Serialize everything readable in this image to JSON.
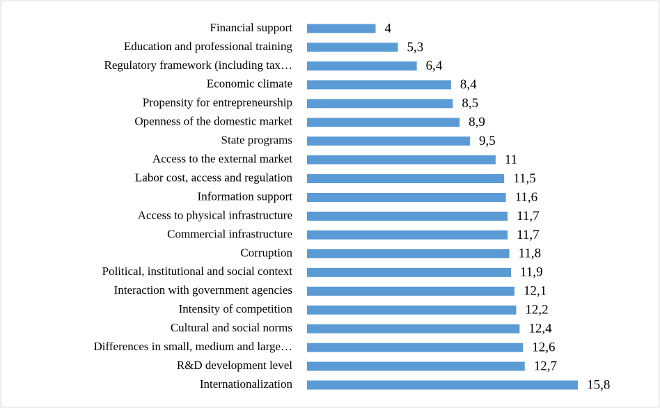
{
  "chart_data": {
    "type": "bar",
    "orientation": "horizontal",
    "categories": [
      "Financial support",
      "Education and professional training",
      "Regulatory framework (including tax…",
      "Economic climate",
      "Propensity for entrepreneurship",
      "Openness of the domestic market",
      "State programs",
      "Access to the external market",
      "Labor cost, access and regulation",
      "Information support",
      "Access to physical infrastructure",
      "Commercial infrastructure",
      "Corruption",
      "Political, institutional and social context",
      "Interaction with government agencies",
      "Intensity of competition",
      "Cultural and social norms",
      "Differences in small, medium and large…",
      "R&D development level",
      "Internationalization"
    ],
    "values": [
      4,
      5.3,
      6.4,
      8.4,
      8.5,
      8.9,
      9.5,
      11,
      11.5,
      11.6,
      11.7,
      11.7,
      11.8,
      11.9,
      12.1,
      12.2,
      12.4,
      12.6,
      12.7,
      15.8
    ],
    "value_labels": [
      "4",
      "5,3",
      "6,4",
      "8,4",
      "8,5",
      "8,9",
      "9,5",
      "11",
      "11,5",
      "11,6",
      "11,7",
      "11,7",
      "11,8",
      "11,9",
      "12,1",
      "12,2",
      "12,4",
      "12,6",
      "12,7",
      "15,8"
    ],
    "color": "#5b9bd5",
    "xlim": [
      0,
      16
    ]
  }
}
